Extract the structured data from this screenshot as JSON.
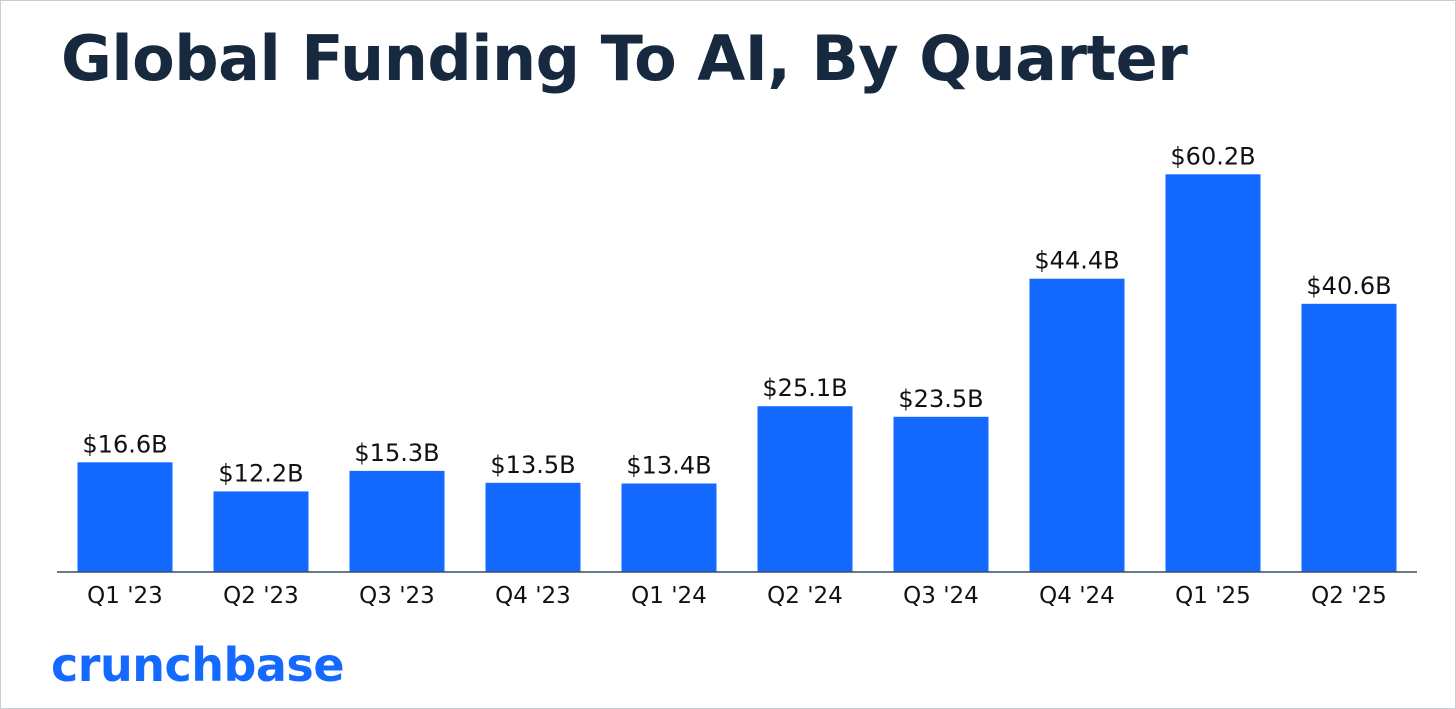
{
  "colors": {
    "bar": "#146aff",
    "title": "#16293e",
    "text": "#111111",
    "axis": "#3a4f63",
    "brand": "#146aff"
  },
  "logo": {
    "text": "crunchbase"
  },
  "chart_data": {
    "type": "bar",
    "title": "Global Funding To AI, By Quarter",
    "xlabel": "",
    "ylabel": "",
    "ylim": [
      0,
      66
    ],
    "grid": false,
    "legend": "none",
    "categories": [
      "Q1 '23",
      "Q2 '23",
      "Q3 '23",
      "Q4 '23",
      "Q1 '24",
      "Q2 '24",
      "Q3 '24",
      "Q4 '24",
      "Q1 '25",
      "Q2 '25"
    ],
    "values": [
      16.6,
      12.2,
      15.3,
      13.5,
      13.4,
      25.1,
      23.5,
      44.4,
      60.2,
      40.6
    ],
    "data_labels": [
      "$16.6B",
      "$12.2B",
      "$15.3B",
      "$13.5B",
      "$13.4B",
      "$25.1B",
      "$23.5B",
      "$44.4B",
      "$60.2B",
      "$40.6B"
    ]
  }
}
